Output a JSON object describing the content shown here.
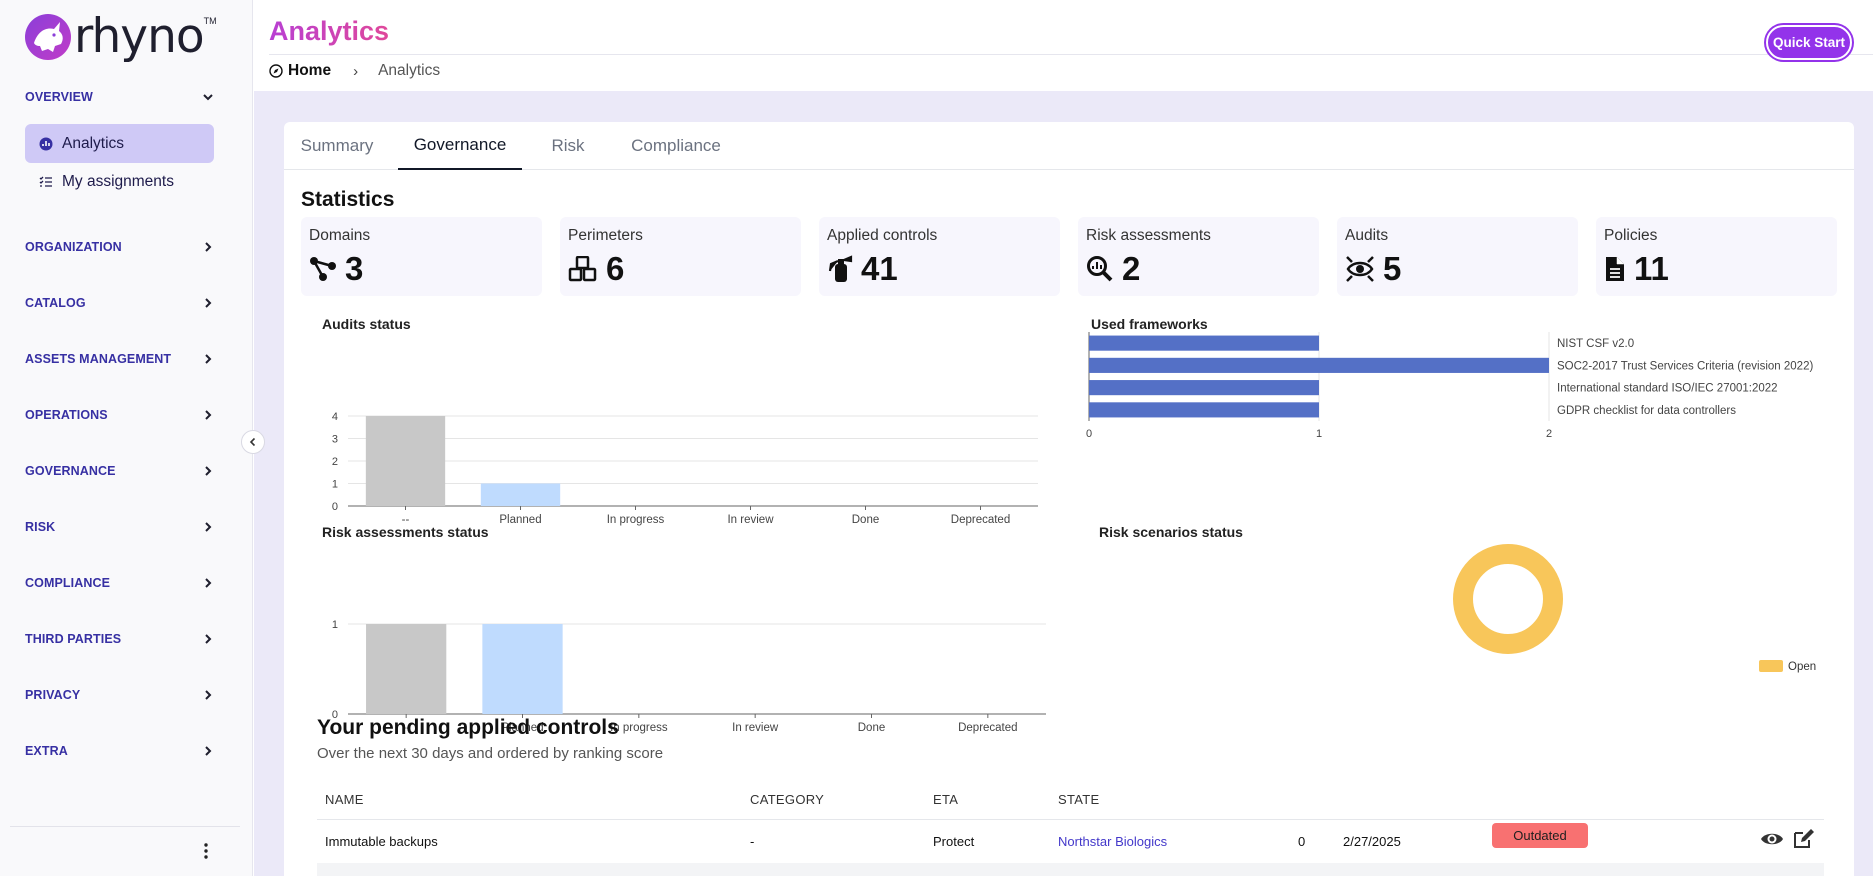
{
  "app": {
    "logo_text": "rhyno",
    "logo_tm": "TM",
    "page_title": "Analytics",
    "quick_start": "Quick Start",
    "accent_color": "#9333ea"
  },
  "breadcrumb": {
    "home": "Home",
    "separator": "›",
    "current": "Analytics"
  },
  "sidebar": {
    "overview": "OVERVIEW",
    "items": [
      {
        "label": "Analytics",
        "icon": "analytics-icon",
        "active": true
      },
      {
        "label": "My assignments",
        "icon": "list-icon",
        "active": false
      }
    ],
    "sections": [
      "ORGANIZATION",
      "CATALOG",
      "ASSETS MANAGEMENT",
      "OPERATIONS",
      "GOVERNANCE",
      "RISK",
      "COMPLIANCE",
      "THIRD PARTIES",
      "PRIVACY",
      "EXTRA"
    ]
  },
  "tabs": [
    "Summary",
    "Governance",
    "Risk",
    "Compliance"
  ],
  "active_tab": "Governance",
  "statistics": {
    "title": "Statistics",
    "cards": [
      {
        "label": "Domains",
        "value": "3",
        "icon": "network-icon"
      },
      {
        "label": "Perimeters",
        "value": "6",
        "icon": "cubes-icon"
      },
      {
        "label": "Applied controls",
        "value": "41",
        "icon": "fire-extinguisher-icon"
      },
      {
        "label": "Risk assessments",
        "value": "2",
        "icon": "magnify-chart-icon"
      },
      {
        "label": "Audits",
        "value": "5",
        "icon": "eye-scan-icon"
      },
      {
        "label": "Policies",
        "value": "11",
        "icon": "file-icon"
      }
    ]
  },
  "chart_data": [
    {
      "type": "bar",
      "title": "Audits status",
      "categories": [
        "--",
        "Planned",
        "In progress",
        "In review",
        "Done",
        "Deprecated"
      ],
      "values": [
        4,
        1,
        0,
        0,
        0,
        0
      ],
      "colors": [
        "#c8c8c8",
        "#bfdbfe",
        "#bfdbfe",
        "#bfdbfe",
        "#bfdbfe",
        "#bfdbfe"
      ],
      "ylim": [
        0,
        4
      ],
      "yticks": [
        "0",
        "1",
        "2",
        "3",
        "4"
      ]
    },
    {
      "type": "bar",
      "orientation": "horizontal",
      "title": "Used frameworks",
      "categories": [
        "NIST CSF v2.0",
        "SOC2-2017 Trust Services Criteria (revision 2022)",
        "International standard ISO/IEC 27001:2022",
        "GDPR checklist for data controllers"
      ],
      "values": [
        1,
        2,
        1,
        1
      ],
      "color": "#5470c6",
      "xlim": [
        0,
        2
      ],
      "xticks": [
        "0",
        "1",
        "2"
      ]
    },
    {
      "type": "bar",
      "title": "Risk assessments status",
      "categories": [
        "--",
        "Planned",
        "In progress",
        "In review",
        "Done",
        "Deprecated"
      ],
      "values": [
        1,
        1,
        0,
        0,
        0,
        0
      ],
      "colors": [
        "#c8c8c8",
        "#bfdbfe",
        "#bfdbfe",
        "#bfdbfe",
        "#bfdbfe",
        "#bfdbfe"
      ],
      "ylim": [
        0,
        1
      ],
      "yticks": [
        "0",
        "1"
      ]
    },
    {
      "type": "pie",
      "donut": true,
      "title": "Risk scenarios status",
      "labels": [
        "Open"
      ],
      "values": [
        1
      ],
      "colors": [
        "#f8c65a"
      ],
      "legend": "bottom-right"
    }
  ],
  "pending": {
    "title": "Your pending applied controls",
    "subtitle": "Over the next 30 days and ordered by ranking score",
    "columns": [
      "NAME",
      "CATEGORY",
      "ETA",
      "STATE"
    ],
    "rows": [
      {
        "name": "Immutable backups",
        "category": "-",
        "csf_function": "Protect",
        "domain": "Northstar Biologics",
        "score": "0",
        "eta": "2/27/2025",
        "state": "Outdated"
      }
    ]
  }
}
